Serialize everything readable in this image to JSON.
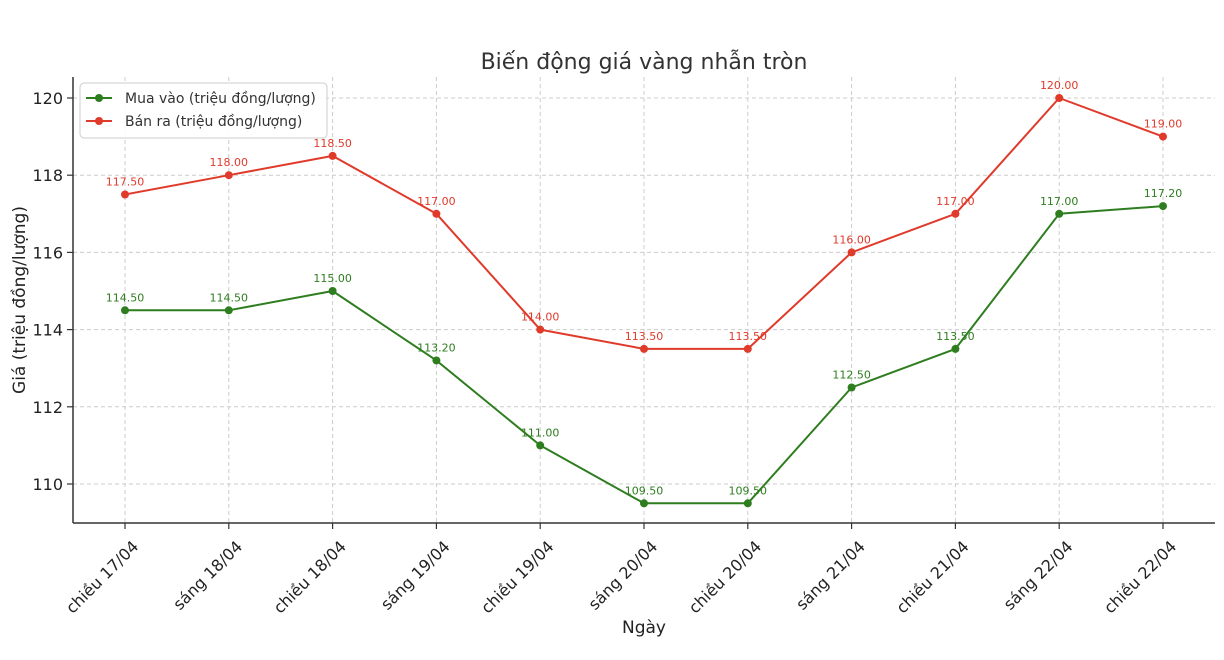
{
  "chart_data": {
    "type": "line",
    "title": "Biến động giá vàng nhẫn tròn",
    "xlabel": "Ngày",
    "ylabel": "Giá (triệu đồng/lượng)",
    "categories": [
      "chiều 17/04",
      "sáng 18/04",
      "chiều 18/04",
      "sáng 19/04",
      "chiều 19/04",
      "sáng 20/04",
      "chiều 20/04",
      "sáng 21/04",
      "chiều 21/04",
      "sáng 22/04",
      "chiều 22/04"
    ],
    "series": [
      {
        "name": "Mua vào (triệu đồng/lượng)",
        "color": "#2e7d1f",
        "values": [
          114.5,
          114.5,
          115.0,
          113.2,
          111.0,
          109.5,
          109.5,
          112.5,
          113.5,
          117.0,
          117.2
        ],
        "labels": [
          "114.50",
          "114.50",
          "115.00",
          "113.20",
          "111.00",
          "109.50",
          "109.50",
          "112.50",
          "113.50",
          "117.00",
          "117.20"
        ]
      },
      {
        "name": "Bán ra (triệu đồng/lượng)",
        "color": "#e03a2b",
        "values": [
          117.5,
          118.0,
          118.5,
          117.0,
          114.0,
          113.5,
          113.5,
          116.0,
          117.0,
          120.0,
          119.0
        ],
        "labels": [
          "117.50",
          "118.00",
          "118.50",
          "117.00",
          "114.00",
          "113.50",
          "113.50",
          "116.00",
          "117.00",
          "120.00",
          "119.00"
        ]
      }
    ],
    "yticks": [
      110,
      112,
      114,
      116,
      118,
      120
    ],
    "ylim": [
      109.0,
      120.5
    ],
    "grid": true,
    "legend_position": "top-left"
  }
}
